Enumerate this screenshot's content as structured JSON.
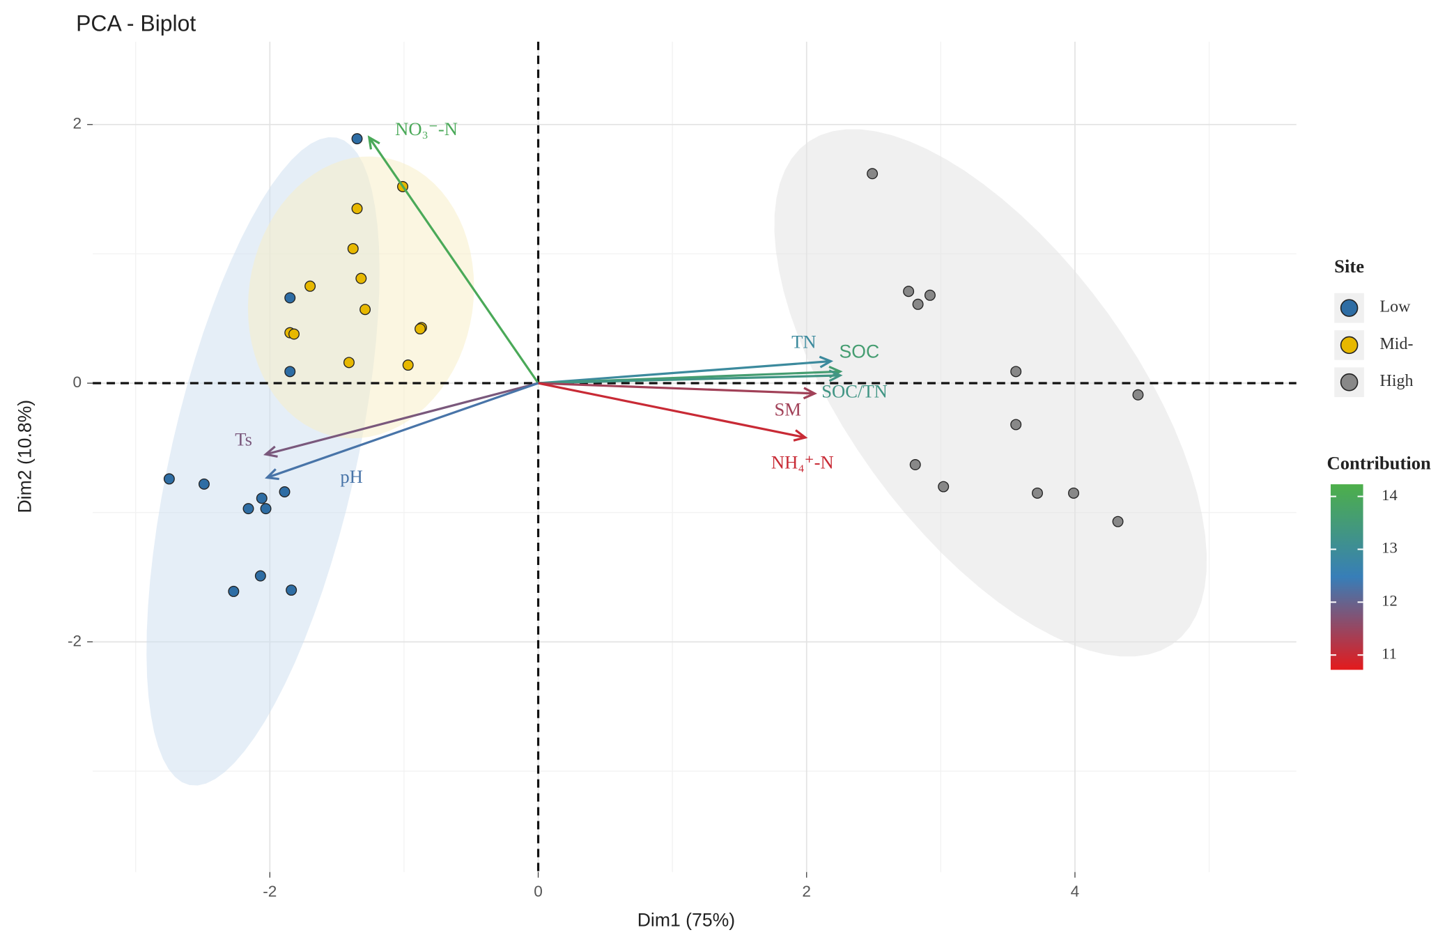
{
  "chart_data": {
    "type": "biplot",
    "title": "PCA - Biplot",
    "x_label": "Dim1 (75%)",
    "y_label": "Dim2 (10.8%)",
    "xlim": [
      -3.32,
      5.65
    ],
    "ylim": [
      -3.78,
      2.64
    ],
    "xticks": [
      -2,
      0,
      2,
      4
    ],
    "yticks": [
      -2,
      0,
      2
    ],
    "grid": true,
    "legend_title": "Site",
    "series": [
      {
        "name": "Low",
        "color": "#2E6DA4",
        "fill": "#cfe0f0",
        "x": [
          -1.35,
          -1.85,
          -1.85,
          -2.75,
          -2.49,
          -1.89,
          -2.06,
          -2.16,
          -2.03,
          -2.07,
          -2.27,
          -1.84
        ],
        "y": [
          1.89,
          0.66,
          0.09,
          -0.74,
          -0.78,
          -0.84,
          -0.89,
          -0.97,
          -0.97,
          -1.49,
          -1.61,
          -1.6
        ]
      },
      {
        "name": "Mid-",
        "color": "#E7B800",
        "fill": "#f7efc8",
        "x": [
          -1.01,
          -1.35,
          -1.38,
          -1.7,
          -1.32,
          -1.29,
          -1.85,
          -1.82,
          -0.87,
          -0.88,
          -1.41,
          -0.97
        ],
        "y": [
          1.52,
          1.35,
          1.04,
          0.75,
          0.81,
          0.57,
          0.39,
          0.38,
          0.43,
          0.42,
          0.16,
          0.14
        ]
      },
      {
        "name": "High",
        "color": "#888888",
        "fill": "#e4e4e4",
        "x": [
          2.49,
          2.76,
          2.83,
          2.92,
          3.56,
          4.47,
          3.56,
          2.81,
          3.02,
          3.72,
          3.99,
          4.32
        ],
        "y": [
          1.62,
          0.71,
          0.61,
          0.68,
          0.09,
          -0.09,
          -0.32,
          -0.63,
          -0.8,
          -0.85,
          -0.85,
          -1.07
        ]
      }
    ],
    "variables": [
      {
        "name": "NO₃⁻-N",
        "x": -1.26,
        "y": 1.9,
        "contribution": 14.0
      },
      {
        "name": "TN",
        "x": 2.18,
        "y": 0.17,
        "contribution": 12.9
      },
      {
        "name": "SOC",
        "x": 2.25,
        "y": 0.09,
        "contribution": 13.6
      },
      {
        "name": "SOC/TN",
        "x": 2.25,
        "y": 0.06,
        "contribution": 13.3
      },
      {
        "name": "SM",
        "x": 2.06,
        "y": -0.08,
        "contribution": 11.4
      },
      {
        "name": "NH₄⁺-N",
        "x": 1.99,
        "y": -0.42,
        "contribution": 11.0
      },
      {
        "name": "Ts",
        "x": -2.03,
        "y": -0.55,
        "contribution": 11.8
      },
      {
        "name": "pH",
        "x": -2.02,
        "y": -0.73,
        "contribution": 12.3
      }
    ],
    "contribution_title": "Contribution",
    "contribution_lim": [
      10.72,
      14.23
    ],
    "contribution_ticks": [
      11,
      12,
      13,
      14
    ],
    "contribution_colors": [
      "#E41A1C",
      "#377EB8",
      "#4DAF4A"
    ]
  }
}
